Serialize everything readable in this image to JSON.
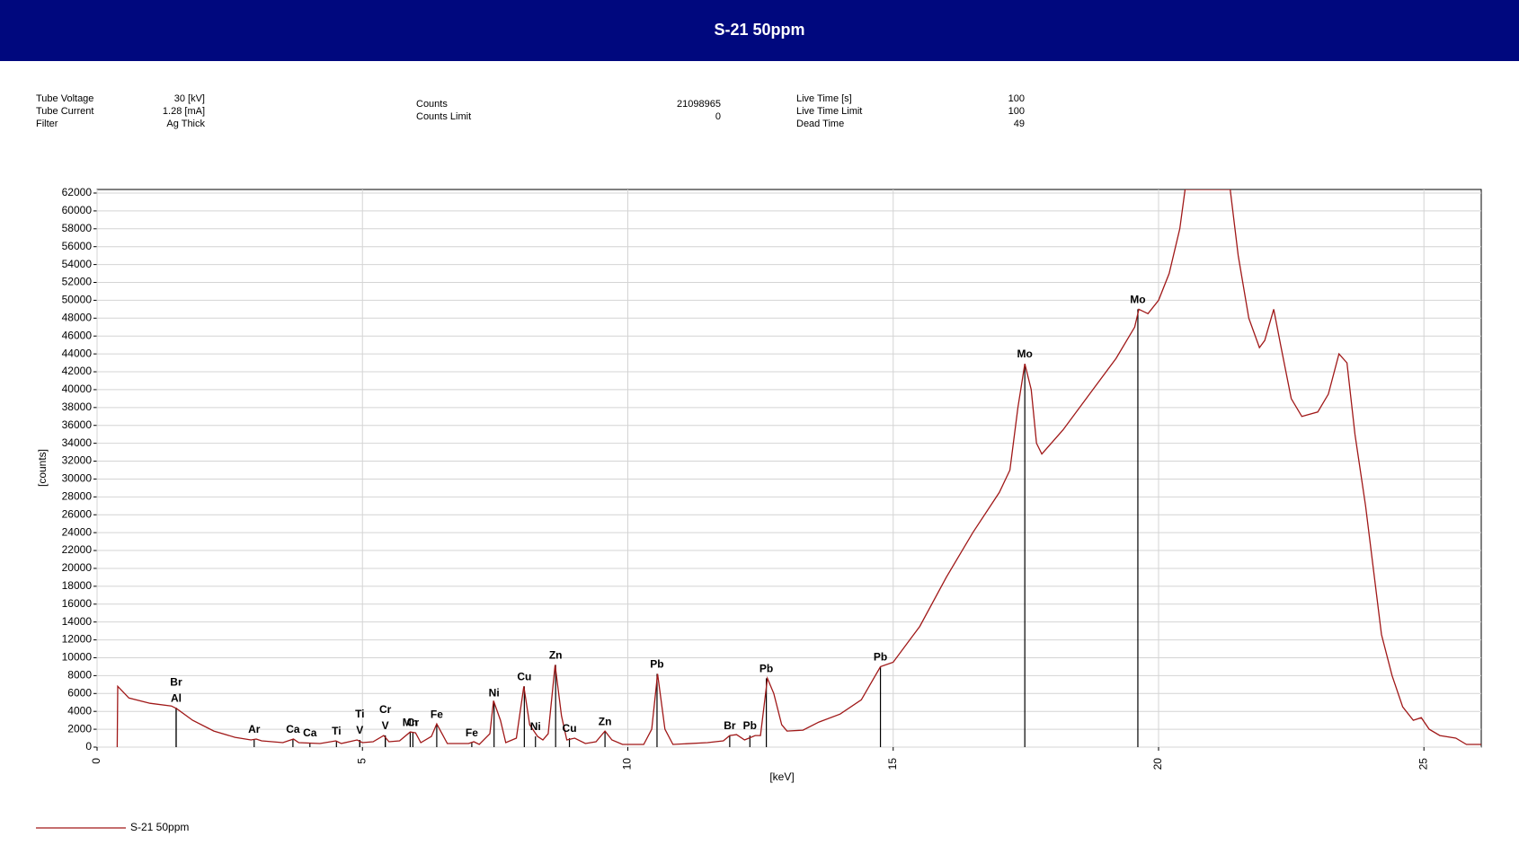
{
  "info": [
    [
      {
        "label": "Tube Voltage",
        "value": "30 [kV]"
      },
      {
        "label": "Tube Current",
        "value": "1.28 [mA]"
      },
      {
        "label": "Filter",
        "value": "Ag Thick"
      }
    ],
    [
      {
        "label": "Counts",
        "value": "21098965"
      },
      {
        "label": "Counts Limit",
        "value": "0"
      }
    ],
    [
      {
        "label": "Live Time [s]",
        "value": "100"
      },
      {
        "label": "Live Time Limit",
        "value": "100"
      },
      {
        "label": "Dead Time",
        "value": "49"
      }
    ]
  ],
  "chart_data": {
    "type": "line",
    "title": "S-21 50ppm",
    "x_label": "[keV]",
    "y_label": "[counts]",
    "xlim": [
      0,
      26.08
    ],
    "ylim": [
      0,
      62400
    ],
    "xticks": [
      0,
      5,
      10,
      15,
      20,
      25
    ],
    "yticks": [
      0,
      2000,
      4000,
      6000,
      8000,
      10000,
      12000,
      14000,
      16000,
      18000,
      20000,
      22000,
      24000,
      26000,
      28000,
      30000,
      32000,
      34000,
      36000,
      38000,
      40000,
      42000,
      44000,
      46000,
      48000,
      50000,
      52000,
      54000,
      56000,
      58000,
      60000,
      62000
    ],
    "grid": true,
    "legend": "bottom-left",
    "series": [
      {
        "name": "S-21 50ppm",
        "color": "#a01818",
        "x": [
          0.38,
          0.39,
          0.6,
          1.0,
          1.4,
          1.5,
          1.8,
          2.2,
          2.6,
          2.9,
          3.0,
          3.1,
          3.5,
          3.7,
          3.8,
          4.2,
          4.5,
          4.6,
          4.9,
          5.0,
          5.2,
          5.4,
          5.5,
          5.7,
          5.9,
          6.0,
          6.1,
          6.3,
          6.4,
          6.5,
          6.6,
          7.0,
          7.1,
          7.2,
          7.4,
          7.47,
          7.6,
          7.7,
          7.9,
          8.04,
          8.15,
          8.3,
          8.4,
          8.5,
          8.63,
          8.75,
          8.85,
          9.0,
          9.2,
          9.4,
          9.57,
          9.7,
          9.9,
          10.3,
          10.45,
          10.56,
          10.7,
          10.85,
          11.5,
          11.8,
          11.92,
          12.05,
          12.2,
          12.4,
          12.5,
          12.63,
          12.75,
          12.9,
          13.0,
          13.3,
          13.6,
          14.0,
          14.4,
          14.76,
          15.0,
          15.5,
          16.0,
          16.5,
          17.0,
          17.2,
          17.35,
          17.48,
          17.6,
          17.7,
          17.8,
          18.2,
          18.7,
          19.2,
          19.55,
          19.63,
          19.8,
          20.0,
          20.2,
          20.4,
          20.5,
          21.35,
          21.5,
          21.7,
          21.9,
          22.0,
          22.17,
          22.3,
          22.5,
          22.7,
          23.0,
          23.2,
          23.4,
          23.55,
          23.7,
          23.9,
          24.2,
          24.4,
          24.6,
          24.8,
          24.95,
          25.1,
          25.3,
          25.6,
          25.8,
          26.08
        ],
        "y": [
          0,
          6800,
          5500,
          4900,
          4600,
          4300,
          3000,
          1800,
          1100,
          800,
          900,
          700,
          500,
          900,
          500,
          400,
          700,
          400,
          800,
          500,
          600,
          1300,
          600,
          700,
          1700,
          1600,
          500,
          1200,
          2600,
          1500,
          400,
          400,
          600,
          300,
          1500,
          5200,
          3000,
          500,
          1000,
          6800,
          2500,
          1200,
          800,
          1500,
          9200,
          3500,
          800,
          1000,
          400,
          600,
          1800,
          800,
          300,
          300,
          2000,
          8200,
          2000,
          300,
          500,
          700,
          1300,
          1400,
          800,
          1300,
          1300,
          7700,
          6000,
          2500,
          1800,
          1900,
          2800,
          3700,
          5300,
          9000,
          9500,
          13500,
          19000,
          24000,
          28500,
          31000,
          38000,
          42900,
          40000,
          34000,
          32800,
          35500,
          39500,
          43500,
          47000,
          49000,
          48500,
          50000,
          53000,
          58000,
          62400,
          62400,
          55000,
          48000,
          44700,
          45500,
          49000,
          45000,
          39000,
          37000,
          37500,
          39500,
          44000,
          43000,
          35000,
          27000,
          12600,
          8000,
          4500,
          3000,
          3300,
          2000,
          1300,
          1000,
          300,
          300
        ]
      }
    ],
    "annotations": [
      {
        "label": "Al",
        "x": 1.49,
        "y": 4400
      },
      {
        "label": "Br",
        "x": 1.49,
        "y": 4400
      },
      {
        "label": "Ar",
        "x": 2.96,
        "y": 900
      },
      {
        "label": "Ca",
        "x": 3.69,
        "y": 900
      },
      {
        "label": "Ca",
        "x": 4.01,
        "y": 500
      },
      {
        "label": "Ti",
        "x": 4.51,
        "y": 700
      },
      {
        "label": "V",
        "x": 4.95,
        "y": 800
      },
      {
        "label": "Ti",
        "x": 4.95,
        "y": 800
      },
      {
        "label": "V",
        "x": 5.43,
        "y": 1300
      },
      {
        "label": "Cr",
        "x": 5.43,
        "y": 1300
      },
      {
        "label": "Cr",
        "x": 5.95,
        "y": 1700
      },
      {
        "label": "Mn",
        "x": 5.9,
        "y": 1700
      },
      {
        "label": "Fe",
        "x": 6.4,
        "y": 2600
      },
      {
        "label": "Fe",
        "x": 7.06,
        "y": 500
      },
      {
        "label": "Ni",
        "x": 7.48,
        "y": 5000
      },
      {
        "label": "Cu",
        "x": 8.05,
        "y": 6800
      },
      {
        "label": "Ni",
        "x": 8.26,
        "y": 1200
      },
      {
        "label": "Zn",
        "x": 8.64,
        "y": 9200
      },
      {
        "label": "Cu",
        "x": 8.9,
        "y": 1000
      },
      {
        "label": "Zn",
        "x": 9.57,
        "y": 1800
      },
      {
        "label": "Pb",
        "x": 10.55,
        "y": 8200
      },
      {
        "label": "Br",
        "x": 11.92,
        "y": 1300
      },
      {
        "label": "Pb",
        "x": 12.3,
        "y": 1300
      },
      {
        "label": "Pb",
        "x": 12.61,
        "y": 7700
      },
      {
        "label": "Pb",
        "x": 14.76,
        "y": 9000
      },
      {
        "label": "Mo",
        "x": 17.48,
        "y": 42900
      },
      {
        "label": "Mo",
        "x": 19.61,
        "y": 49000
      }
    ]
  }
}
